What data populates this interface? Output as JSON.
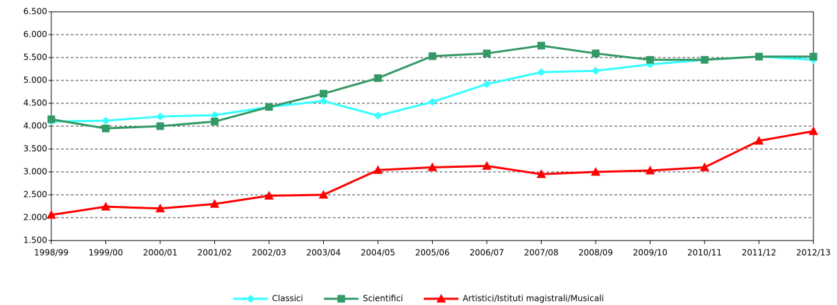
{
  "chart_data": {
    "type": "line",
    "categories": [
      "1998/99",
      "1999/00",
      "2000/01",
      "2001/02",
      "2002/03",
      "2003/04",
      "2004/05",
      "2005/06",
      "2006/07",
      "2007/08",
      "2008/09",
      "2009/10",
      "2010/11",
      "2011/12",
      "2012/13"
    ],
    "series": [
      {
        "name": "Classici",
        "color": "#33ffff",
        "marker": "diamond",
        "values": [
          4100,
          4120,
          4210,
          4240,
          4420,
          4550,
          4230,
          4530,
          4920,
          5180,
          5210,
          5350,
          5450,
          5520,
          5450
        ]
      },
      {
        "name": "Scientifici",
        "color": "#339966",
        "marker": "square",
        "values": [
          4150,
          3950,
          4000,
          4100,
          4420,
          4710,
          5050,
          5530,
          5590,
          5760,
          5590,
          5450,
          5450,
          5520,
          5520
        ]
      },
      {
        "name": "Artistici/Istituti magistrali/Musicali",
        "color": "#ff0000",
        "marker": "triangle",
        "values": [
          2060,
          2240,
          2200,
          2300,
          2480,
          2500,
          3040,
          3100,
          3130,
          2950,
          3000,
          3030,
          3100,
          3680,
          3890
        ]
      }
    ],
    "ylim": [
      1500,
      6500
    ],
    "yticks": [
      {
        "value": 1500,
        "label": "1.500"
      },
      {
        "value": 2000,
        "label": "2.000"
      },
      {
        "value": 2500,
        "label": "2.500"
      },
      {
        "value": 3000,
        "label": "3.000"
      },
      {
        "value": 3500,
        "label": "3.500"
      },
      {
        "value": 4000,
        "label": "4.000"
      },
      {
        "value": 4500,
        "label": "4.500"
      },
      {
        "value": 5000,
        "label": "5.000"
      },
      {
        "value": 5500,
        "label": "5.500"
      },
      {
        "value": 6000,
        "label": "6.000"
      },
      {
        "value": 6500,
        "label": "6.500"
      }
    ],
    "grid": true,
    "legend": "bottom"
  }
}
